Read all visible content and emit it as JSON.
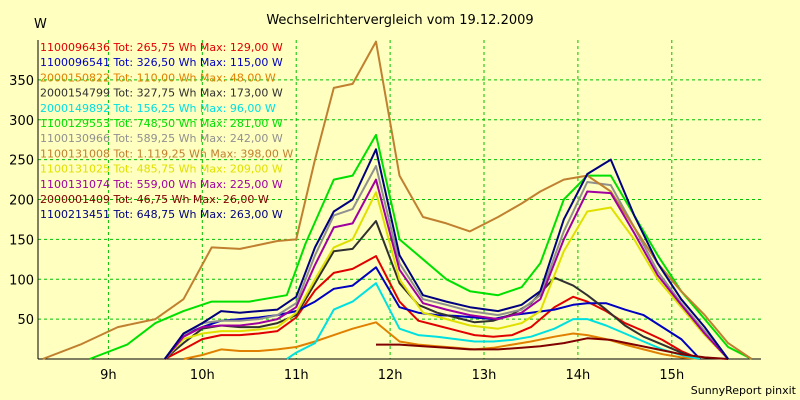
{
  "chart_data": {
    "type": "line",
    "title": "Wechselrichtervergleich vom 19.12.2009",
    "ylabel": "W",
    "footer": "SunnyReport pinxit",
    "ylim": [
      0,
      400
    ],
    "xlim": [
      8.25,
      15.95
    ],
    "y_ticks": [
      50,
      100,
      150,
      200,
      250,
      300,
      350
    ],
    "x_ticks": [
      {
        "value": 9,
        "label": "9h"
      },
      {
        "value": 10,
        "label": "10h"
      },
      {
        "value": 11,
        "label": "11h"
      },
      {
        "value": 12,
        "label": "12h"
      },
      {
        "value": 13,
        "label": "13h"
      },
      {
        "value": 14,
        "label": "14h"
      },
      {
        "value": 15,
        "label": "15h"
      }
    ],
    "grid": true,
    "legend_position": "top-left",
    "series": [
      {
        "name": "1100096436 Tot: 265,75 Wh Max: 129,00 W",
        "color": "#e00000",
        "x": [
          9.6,
          9.8,
          10.0,
          10.2,
          10.4,
          10.6,
          10.8,
          11.0,
          11.2,
          11.4,
          11.6,
          11.85,
          12.1,
          12.3,
          12.5,
          12.7,
          12.9,
          13.1,
          13.3,
          13.5,
          13.75,
          13.95,
          14.1,
          14.3,
          14.5,
          14.7,
          14.9,
          15.1,
          15.3
        ],
        "y": [
          0,
          12,
          25,
          30,
          30,
          32,
          35,
          52,
          86,
          108,
          113,
          129,
          72,
          48,
          42,
          36,
          30,
          28,
          30,
          40,
          65,
          78,
          72,
          60,
          45,
          35,
          24,
          10,
          0
        ]
      },
      {
        "name": "1100096541 Tot: 326,50 Wh Max: 115,00 W",
        "color": "#0000c0",
        "x": [
          9.6,
          9.8,
          10.0,
          10.2,
          10.4,
          10.6,
          10.8,
          11.0,
          11.2,
          11.4,
          11.6,
          11.85,
          12.1,
          12.3,
          12.5,
          12.7,
          12.9,
          13.1,
          13.3,
          13.5,
          13.75,
          13.95,
          14.1,
          14.3,
          14.5,
          14.7,
          14.9,
          15.1,
          15.3
        ],
        "y": [
          0,
          30,
          40,
          48,
          50,
          52,
          55,
          60,
          72,
          88,
          92,
          115,
          65,
          58,
          55,
          54,
          52,
          50,
          55,
          58,
          62,
          68,
          70,
          70,
          62,
          55,
          40,
          25,
          0
        ]
      },
      {
        "name": "2000150822 Tot: 110,00 Wh Max: 48,00 W",
        "color": "#e08000",
        "x": [
          9.8,
          10.0,
          10.2,
          10.4,
          10.6,
          10.8,
          11.0,
          11.2,
          11.4,
          11.6,
          11.85,
          12.1,
          12.3,
          12.5,
          12.7,
          12.9,
          13.1,
          13.3,
          13.5,
          13.75,
          13.95,
          14.1,
          14.3,
          14.5,
          14.7,
          14.9,
          15.1,
          15.3
        ],
        "y": [
          0,
          5,
          12,
          10,
          10,
          12,
          15,
          22,
          30,
          38,
          46,
          22,
          18,
          16,
          14,
          12,
          14,
          18,
          22,
          28,
          32,
          30,
          25,
          18,
          12,
          6,
          2,
          0
        ]
      },
      {
        "name": "2000154799 Tot: 327,75 Wh Max: 173,00 W",
        "color": "#303030",
        "x": [
          9.6,
          9.8,
          10.0,
          10.2,
          10.4,
          10.6,
          10.8,
          11.0,
          11.2,
          11.4,
          11.6,
          11.85,
          12.1,
          12.3,
          12.5,
          12.7,
          12.9,
          13.1,
          13.3,
          13.5,
          13.75,
          13.95,
          14.1,
          14.3,
          14.5,
          14.7,
          14.9,
          15.1,
          15.3
        ],
        "y": [
          0,
          20,
          38,
          42,
          40,
          40,
          45,
          55,
          95,
          135,
          138,
          173,
          95,
          68,
          58,
          52,
          46,
          48,
          56,
          70,
          102,
          92,
          80,
          62,
          42,
          28,
          18,
          8,
          0
        ]
      },
      {
        "name": "2000149892 Tot: 156,25 Wh Max: 96,00 W",
        "color": "#00e0e0",
        "x": [
          10.9,
          11.0,
          11.2,
          11.4,
          11.6,
          11.85,
          12.1,
          12.3,
          12.5,
          12.7,
          12.9,
          13.1,
          13.3,
          13.5,
          13.75,
          13.95,
          14.1,
          14.3,
          14.5,
          14.7,
          14.9,
          15.1,
          15.3
        ],
        "y": [
          0,
          8,
          20,
          62,
          72,
          95,
          38,
          30,
          28,
          25,
          22,
          22,
          24,
          28,
          38,
          50,
          50,
          42,
          32,
          22,
          12,
          5,
          0
        ]
      },
      {
        "name": "1100129553 Tot: 748,50 Wh Max: 281,00 W",
        "color": "#00e000",
        "x": [
          8.8,
          9.2,
          9.5,
          9.8,
          10.1,
          10.5,
          10.9,
          11.1,
          11.4,
          11.6,
          11.85,
          12.1,
          12.35,
          12.6,
          12.85,
          13.15,
          13.4,
          13.6,
          13.85,
          14.1,
          14.35,
          14.6,
          14.85,
          15.1,
          15.35,
          15.6,
          15.85
        ],
        "y": [
          0,
          18,
          45,
          60,
          72,
          72,
          80,
          145,
          225,
          230,
          281,
          150,
          125,
          100,
          85,
          80,
          90,
          120,
          200,
          230,
          230,
          180,
          130,
          85,
          50,
          15,
          0
        ]
      },
      {
        "name": "1100130966 Tot: 589,25 Wh Max: 242,00 W",
        "color": "#909090",
        "x": [
          9.6,
          9.8,
          10.0,
          10.2,
          10.4,
          10.6,
          10.8,
          11.0,
          11.2,
          11.4,
          11.6,
          11.85,
          12.1,
          12.35,
          12.6,
          12.85,
          13.15,
          13.4,
          13.6,
          13.85,
          14.1,
          14.35,
          14.6,
          14.85,
          15.1,
          15.35,
          15.6
        ],
        "y": [
          0,
          30,
          45,
          48,
          48,
          50,
          55,
          70,
          130,
          180,
          188,
          242,
          120,
          75,
          68,
          60,
          55,
          62,
          80,
          160,
          222,
          218,
          165,
          110,
          70,
          35,
          0
        ]
      },
      {
        "name": "1100131008 Tot: 1.119,25 Wh Max: 398,00 W",
        "color": "#c08030",
        "x": [
          8.3,
          8.7,
          9.1,
          9.5,
          9.8,
          10.1,
          10.4,
          10.8,
          11.0,
          11.2,
          11.4,
          11.6,
          11.85,
          12.1,
          12.35,
          12.6,
          12.85,
          13.15,
          13.4,
          13.6,
          13.85,
          14.1,
          14.35,
          14.6,
          14.85,
          15.1,
          15.35,
          15.6,
          15.85
        ],
        "y": [
          0,
          18,
          40,
          50,
          75,
          140,
          138,
          148,
          150,
          250,
          340,
          345,
          398,
          230,
          178,
          170,
          160,
          178,
          195,
          210,
          225,
          230,
          210,
          165,
          120,
          85,
          55,
          20,
          0
        ]
      },
      {
        "name": "1100131025 Tot: 485,75 Wh Max: 209,00 W",
        "color": "#e0e000",
        "x": [
          9.6,
          9.8,
          10.0,
          10.2,
          10.4,
          10.6,
          10.8,
          11.0,
          11.2,
          11.4,
          11.6,
          11.85,
          12.1,
          12.35,
          12.6,
          12.85,
          13.15,
          13.4,
          13.6,
          13.85,
          14.1,
          14.35,
          14.6,
          14.85,
          15.1,
          15.35,
          15.6
        ],
        "y": [
          0,
          25,
          32,
          35,
          35,
          37,
          40,
          58,
          100,
          140,
          150,
          209,
          100,
          58,
          50,
          42,
          38,
          45,
          60,
          135,
          185,
          190,
          150,
          100,
          65,
          30,
          0
        ]
      },
      {
        "name": "1100131074 Tot: 559,00 Wh Max: 225,00 W",
        "color": "#a000a0",
        "x": [
          9.6,
          9.8,
          10.0,
          10.2,
          10.4,
          10.6,
          10.8,
          11.0,
          11.2,
          11.4,
          11.6,
          11.85,
          12.1,
          12.35,
          12.6,
          12.85,
          13.15,
          13.4,
          13.6,
          13.85,
          14.1,
          14.35,
          14.6,
          14.85,
          15.1,
          15.35,
          15.6
        ],
        "y": [
          0,
          28,
          40,
          42,
          42,
          45,
          50,
          65,
          118,
          165,
          170,
          225,
          112,
          70,
          62,
          55,
          50,
          58,
          75,
          150,
          210,
          208,
          158,
          105,
          68,
          32,
          0
        ]
      },
      {
        "name": "2000001409 Tot: 46,75 Wh Max: 26,00 W",
        "color": "#800000",
        "x": [
          11.85,
          12.1,
          12.35,
          12.6,
          12.85,
          13.15,
          13.4,
          13.6,
          13.85,
          14.1,
          14.35,
          14.6,
          14.85,
          15.1,
          15.35,
          15.6
        ],
        "y": [
          18,
          18,
          16,
          14,
          12,
          12,
          14,
          16,
          20,
          26,
          24,
          18,
          12,
          6,
          2,
          0
        ]
      },
      {
        "name": "1100213451 Tot: 648,75 Wh Max: 263,00 W",
        "color": "#000080",
        "x": [
          9.6,
          9.8,
          10.0,
          10.2,
          10.4,
          10.6,
          10.8,
          11.0,
          11.2,
          11.4,
          11.6,
          11.85,
          12.1,
          12.35,
          12.6,
          12.85,
          13.15,
          13.4,
          13.6,
          13.85,
          14.1,
          14.35,
          14.6,
          14.85,
          15.1,
          15.35,
          15.6
        ],
        "y": [
          0,
          32,
          45,
          60,
          58,
          60,
          62,
          78,
          140,
          185,
          200,
          263,
          130,
          80,
          72,
          65,
          60,
          68,
          85,
          175,
          232,
          250,
          180,
          120,
          75,
          40,
          0
        ]
      }
    ]
  }
}
